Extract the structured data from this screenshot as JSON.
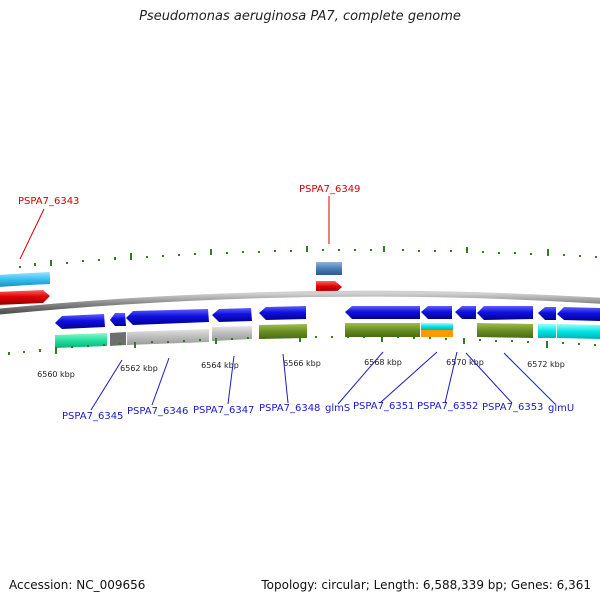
{
  "title": "Pseudomonas aeruginosa PA7, complete genome",
  "footer": {
    "accession": "Accession: NC_009656",
    "summary": "Topology: circular; Length: 6,588,339 bp; Genes: 6,361"
  },
  "colors": {
    "backbone": "#8c8c8c",
    "tick": "#2e7d1e",
    "forward_gene": "#1010e0",
    "reverse_gene": "#e00000",
    "label_forward": "#1a1acc",
    "label_reverse": "#d40000",
    "cog_green": "#6b8e23",
    "cog_gray": "#b8b8b8",
    "cog_cyan": "#00e6e6",
    "cog_teal": "#20e0a0",
    "cog_sky": "#33c1f0",
    "cog_orange": "#ff9900",
    "cog_steel": "#4a7fb5"
  },
  "scale_labels": [
    "6560 kbp",
    "6562 kbp",
    "6564 kbp",
    "6566 kbp",
    "6568 kbp",
    "6570 kbp",
    "6572 kbp"
  ],
  "reverse_labels": [
    "PSPA7_6343",
    "PSPA7_6349"
  ],
  "forward_labels": [
    "PSPA7_6345",
    "PSPA7_6346",
    "PSPA7_6347",
    "PSPA7_6348",
    "glmS",
    "PSPA7_6351",
    "PSPA7_6352",
    "PSPA7_6353",
    "glmU"
  ]
}
